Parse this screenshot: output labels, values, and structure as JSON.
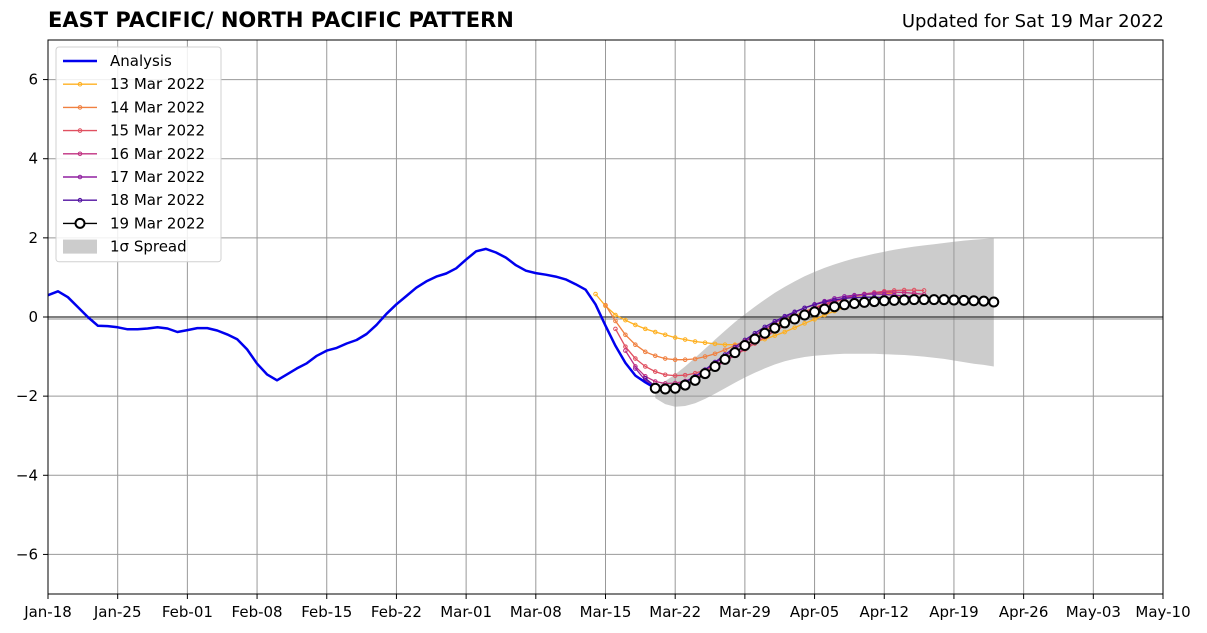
{
  "title": "EAST PACIFIC/ NORTH PACIFIC PATTERN",
  "updated": "Updated for Sat 19 Mar 2022",
  "chart_data": {
    "type": "line",
    "title": "EAST PACIFIC/ NORTH PACIFIC PATTERN",
    "subtitle": "Updated for Sat 19 Mar 2022",
    "xlabel": "",
    "ylabel": "",
    "x_range": [
      "2022-01-18",
      "2022-05-10"
    ],
    "ylim": [
      -7,
      7
    ],
    "x_ticks": [
      {
        "date": "2022-01-18",
        "label": "Jan-18"
      },
      {
        "date": "2022-01-25",
        "label": "Jan-25"
      },
      {
        "date": "2022-02-01",
        "label": "Feb-01"
      },
      {
        "date": "2022-02-08",
        "label": "Feb-08"
      },
      {
        "date": "2022-02-15",
        "label": "Feb-15"
      },
      {
        "date": "2022-02-22",
        "label": "Feb-22"
      },
      {
        "date": "2022-03-01",
        "label": "Mar-01"
      },
      {
        "date": "2022-03-08",
        "label": "Mar-08"
      },
      {
        "date": "2022-03-15",
        "label": "Mar-15"
      },
      {
        "date": "2022-03-22",
        "label": "Mar-22"
      },
      {
        "date": "2022-03-29",
        "label": "Mar-29"
      },
      {
        "date": "2022-04-05",
        "label": "Apr-05"
      },
      {
        "date": "2022-04-12",
        "label": "Apr-12"
      },
      {
        "date": "2022-04-19",
        "label": "Apr-19"
      },
      {
        "date": "2022-04-26",
        "label": "Apr-26"
      },
      {
        "date": "2022-05-03",
        "label": "May-03"
      },
      {
        "date": "2022-05-10",
        "label": "May-10"
      }
    ],
    "y_ticks": [
      {
        "value": -6,
        "label": "−6"
      },
      {
        "value": -4,
        "label": "−4"
      },
      {
        "value": -2,
        "label": "−2"
      },
      {
        "value": 0,
        "label": "0"
      },
      {
        "value": 2,
        "label": "2"
      },
      {
        "value": 4,
        "label": "4"
      },
      {
        "value": 6,
        "label": "6"
      }
    ],
    "grid": true,
    "legend_position": "top-left",
    "colors": {
      "analysis": "#0000ee",
      "grid": "#999999",
      "spread": "#cccccc",
      "forecast_current": "#000000"
    },
    "analysis": {
      "name": "Analysis",
      "color": "#0000ee",
      "start": "2022-01-18",
      "values": [
        0.55,
        0.65,
        0.5,
        0.25,
        0.0,
        -0.22,
        -0.23,
        -0.26,
        -0.31,
        -0.31,
        -0.29,
        -0.26,
        -0.29,
        -0.38,
        -0.33,
        -0.28,
        -0.28,
        -0.34,
        -0.44,
        -0.56,
        -0.82,
        -1.18,
        -1.45,
        -1.6,
        -1.45,
        -1.3,
        -1.17,
        -0.98,
        -0.85,
        -0.78,
        -0.67,
        -0.58,
        -0.43,
        -0.2,
        0.08,
        0.32,
        0.53,
        0.74,
        0.9,
        1.02,
        1.1,
        1.23,
        1.45,
        1.66,
        1.72,
        1.63,
        1.5,
        1.31,
        1.17,
        1.11,
        1.07,
        1.02,
        0.95,
        0.83,
        0.69,
        0.32,
        -0.22,
        -0.73,
        -1.16,
        -1.48,
        -1.65,
        -1.8
      ]
    },
    "forecasts": [
      {
        "name": "13 Mar 2022",
        "color": "#ffb020",
        "start": "2022-03-14",
        "values": [
          0.58,
          0.28,
          0.05,
          -0.08,
          -0.2,
          -0.3,
          -0.38,
          -0.45,
          -0.52,
          -0.57,
          -0.62,
          -0.65,
          -0.68,
          -0.7,
          -0.7,
          -0.68,
          -0.63,
          -0.56,
          -0.47,
          -0.38,
          -0.27,
          -0.16,
          -0.06,
          0.05,
          0.15,
          0.25,
          0.33,
          0.4,
          0.45,
          0.48,
          0.5,
          0.5,
          0.5,
          0.49
        ]
      },
      {
        "name": "14 Mar 2022",
        "color": "#f08040",
        "start": "2022-03-15",
        "values": [
          0.3,
          -0.1,
          -0.45,
          -0.7,
          -0.88,
          -0.98,
          -1.05,
          -1.08,
          -1.08,
          -1.06,
          -1.0,
          -0.93,
          -0.83,
          -0.72,
          -0.6,
          -0.47,
          -0.34,
          -0.21,
          -0.09,
          0.03,
          0.14,
          0.24,
          0.33,
          0.41,
          0.47,
          0.52,
          0.56,
          0.59,
          0.6,
          0.6
        ]
      },
      {
        "name": "15 Mar 2022",
        "color": "#e05060",
        "start": "2022-03-16",
        "values": [
          -0.3,
          -0.75,
          -1.05,
          -1.25,
          -1.38,
          -1.46,
          -1.48,
          -1.47,
          -1.42,
          -1.34,
          -1.24,
          -1.11,
          -0.97,
          -0.82,
          -0.67,
          -0.51,
          -0.36,
          -0.21,
          -0.07,
          0.06,
          0.18,
          0.29,
          0.38,
          0.46,
          0.53,
          0.58,
          0.62,
          0.65,
          0.67,
          0.68,
          0.68,
          0.67
        ]
      },
      {
        "name": "16 Mar 2022",
        "color": "#c03080",
        "start": "2022-03-17",
        "values": [
          -0.85,
          -1.25,
          -1.5,
          -1.63,
          -1.68,
          -1.67,
          -1.62,
          -1.53,
          -1.41,
          -1.27,
          -1.12,
          -0.96,
          -0.79,
          -0.62,
          -0.46,
          -0.3,
          -0.15,
          -0.02,
          0.11,
          0.22,
          0.32,
          0.41,
          0.48,
          0.54,
          0.58,
          0.61,
          0.63,
          0.63,
          0.62,
          0.6,
          0.57
        ]
      },
      {
        "name": "17 Mar 2022",
        "color": "#9020a0",
        "start": "2022-03-18",
        "values": [
          -1.3,
          -1.6,
          -1.75,
          -1.78,
          -1.73,
          -1.63,
          -1.5,
          -1.34,
          -1.17,
          -0.99,
          -0.81,
          -0.63,
          -0.46,
          -0.3,
          -0.15,
          -0.01,
          0.12,
          0.23,
          0.32,
          0.4,
          0.47,
          0.52,
          0.55,
          0.57,
          0.58,
          0.57,
          0.55,
          0.53,
          0.5,
          0.47
        ]
      },
      {
        "name": "18 Mar 2022",
        "color": "#5010a0",
        "start": "2022-03-19",
        "values": [
          -1.55,
          -1.75,
          -1.8,
          -1.75,
          -1.65,
          -1.5,
          -1.33,
          -1.14,
          -0.95,
          -0.76,
          -0.58,
          -0.41,
          -0.25,
          -0.11,
          0.02,
          0.13,
          0.23,
          0.31,
          0.38,
          0.43,
          0.47,
          0.49,
          0.5,
          0.5,
          0.49,
          0.47,
          0.45,
          0.42,
          0.4,
          0.38
        ]
      },
      {
        "name": "19 Mar 2022",
        "color": "#000000",
        "start": "2022-03-20",
        "values": [
          -1.8,
          -1.82,
          -1.8,
          -1.72,
          -1.6,
          -1.43,
          -1.25,
          -1.07,
          -0.9,
          -0.72,
          -0.56,
          -0.41,
          -0.28,
          -0.15,
          -0.05,
          0.05,
          0.13,
          0.2,
          0.26,
          0.31,
          0.34,
          0.37,
          0.39,
          0.41,
          0.42,
          0.43,
          0.44,
          0.44,
          0.44,
          0.44,
          0.43,
          0.42,
          0.41,
          0.4,
          0.38
        ]
      }
    ],
    "spread": {
      "name": "1σ Spread",
      "color": "#cccccc",
      "start": "2022-03-20",
      "upper": [
        -1.75,
        -1.62,
        -1.45,
        -1.25,
        -1.03,
        -0.8,
        -0.57,
        -0.35,
        -0.13,
        0.07,
        0.26,
        0.44,
        0.61,
        0.76,
        0.9,
        1.03,
        1.14,
        1.24,
        1.33,
        1.41,
        1.48,
        1.54,
        1.6,
        1.65,
        1.7,
        1.74,
        1.78,
        1.81,
        1.84,
        1.87,
        1.9,
        1.93,
        1.95,
        1.97,
        1.99
      ],
      "lower": [
        -2.05,
        -2.2,
        -2.27,
        -2.25,
        -2.18,
        -2.07,
        -1.94,
        -1.8,
        -1.66,
        -1.53,
        -1.41,
        -1.3,
        -1.2,
        -1.12,
        -1.06,
        -1.01,
        -0.98,
        -0.96,
        -0.94,
        -0.93,
        -0.93,
        -0.93,
        -0.93,
        -0.94,
        -0.95,
        -0.96,
        -0.98,
        -1.0,
        -1.03,
        -1.06,
        -1.1,
        -1.14,
        -1.18,
        -1.21,
        -1.25
      ]
    }
  }
}
